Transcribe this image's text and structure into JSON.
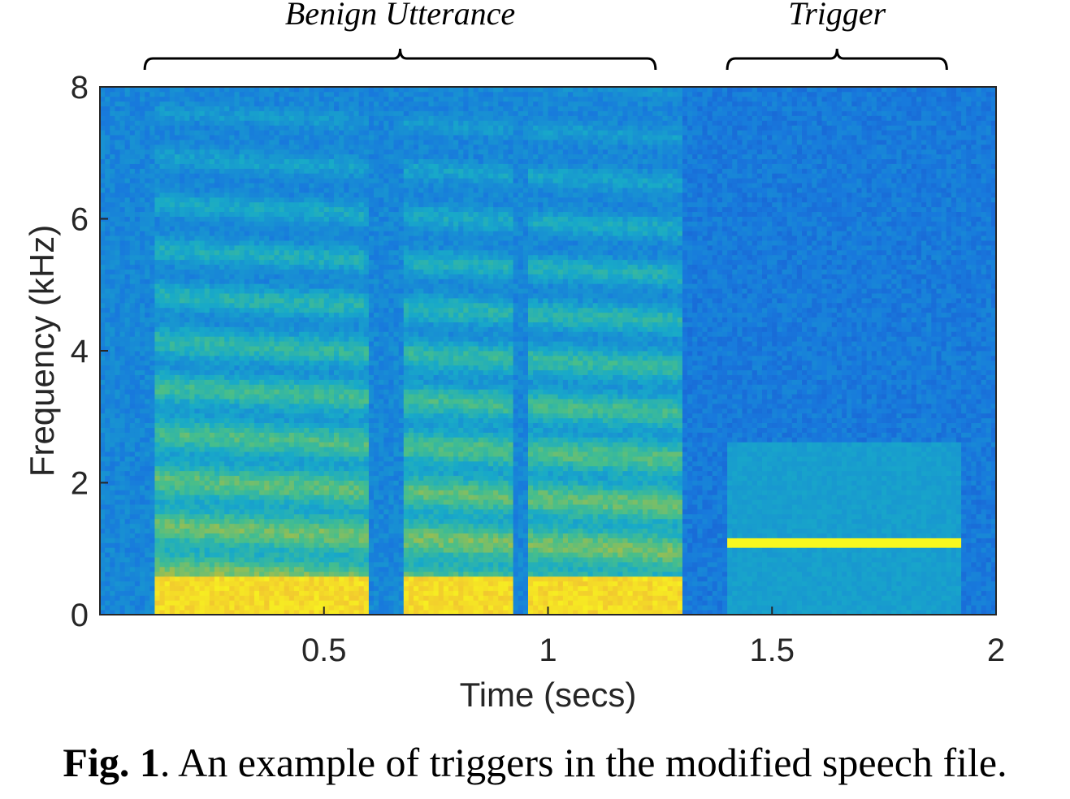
{
  "caption": {
    "label": "Fig. 1",
    "text": ". An example of triggers in the modified speech file."
  },
  "chart_data": {
    "type": "heatmap",
    "title": "",
    "xlabel": "Time (secs)",
    "ylabel": "Frequency (kHz)",
    "xlim": [
      0,
      2
    ],
    "ylim": [
      0,
      8
    ],
    "x_ticks": [
      "0.5",
      "1",
      "1.5",
      "2"
    ],
    "y_ticks": [
      "0",
      "2",
      "4",
      "6",
      "8"
    ],
    "colormap": "parula",
    "colors": {
      "low": "#1f6ad6",
      "mid": "#20b0c8",
      "high": "#f5c430",
      "peak": "#f8f030"
    },
    "annotations": [
      {
        "label": "Benign Utterance",
        "x_range": [
          0.1,
          1.24
        ]
      },
      {
        "label": "Trigger",
        "x_range": [
          1.4,
          1.89
        ]
      }
    ],
    "segments": [
      {
        "name": "speech",
        "t_start": 0.12,
        "t_end": 1.3
      },
      {
        "name": "tone",
        "t_start": 1.4,
        "t_end": 1.92,
        "frequency_khz": 1.1
      }
    ]
  }
}
